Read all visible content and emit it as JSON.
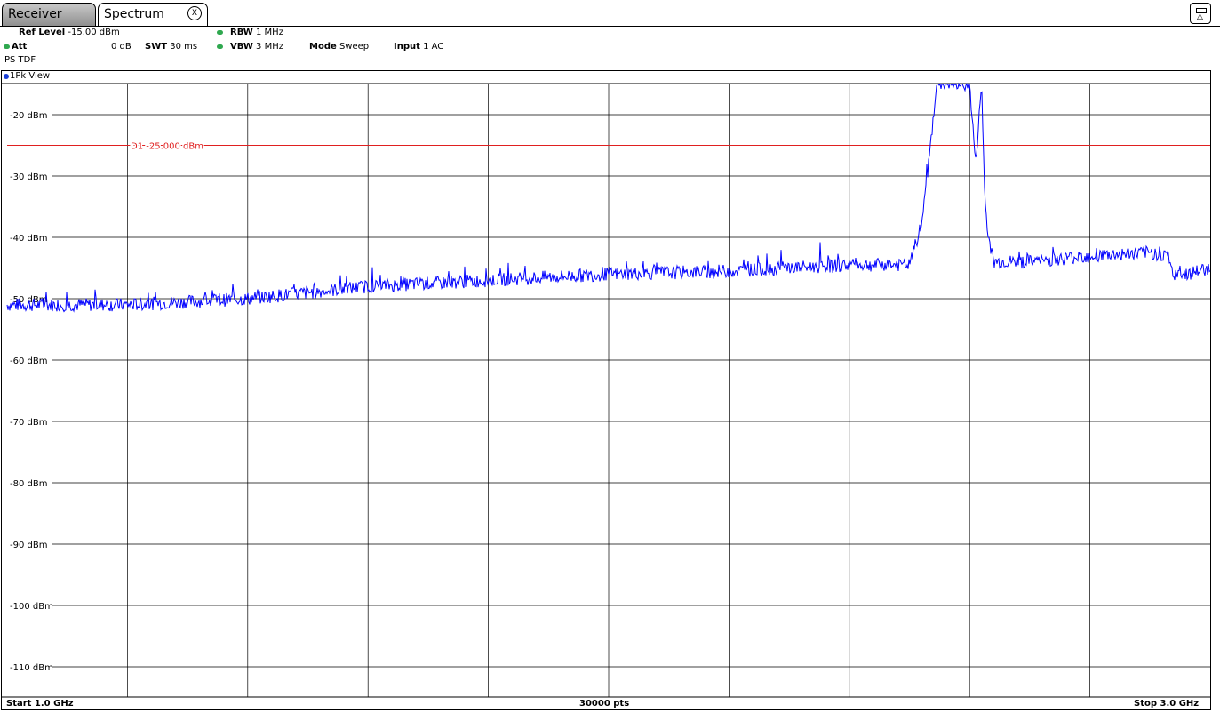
{
  "tabs": [
    {
      "label": "Receiver"
    },
    {
      "label": "Spectrum",
      "close_label": "X"
    }
  ],
  "header": {
    "ref_level": {
      "label": "Ref Level",
      "value": "-15.00 dBm"
    },
    "att": {
      "label": "Att",
      "value": "0 dB"
    },
    "swt": {
      "label": "SWT",
      "value": "30 ms"
    },
    "rbw": {
      "label": "RBW",
      "value": "1 MHz"
    },
    "vbw": {
      "label": "VBW",
      "value": "3 MHz"
    },
    "mode": {
      "label": "Mode",
      "value": "Sweep"
    },
    "input": {
      "label": "Input",
      "value": "1 AC"
    },
    "ps": "PS TDF"
  },
  "view_label": "1Pk View",
  "display_line": {
    "label": "D1",
    "value_text": "-25.000 dBm",
    "value": -25,
    "color": "#e02020"
  },
  "trace_color": "#0000ff",
  "footer": {
    "start": "Start 1.0 GHz",
    "points": "30000 pts",
    "stop": "Stop 3.0 GHz"
  },
  "chart_data": {
    "type": "line",
    "xlim": [
      1.0,
      3.0
    ],
    "ylim": [
      -115,
      -15
    ],
    "y_ticks": [
      -20,
      -30,
      -40,
      -50,
      -60,
      -70,
      -80,
      -90,
      -100,
      -110
    ],
    "y_tick_labels": [
      "-20 dBm",
      "-30 dBm",
      "-40 dBm",
      "-50 dBm",
      "-60 dBm",
      "-70 dBm",
      "-80 dBm",
      "-90 dBm",
      "-100 dBm",
      "-110 dBm"
    ],
    "x_divisions": 10,
    "series": [
      {
        "x": [
          1.0,
          1.2,
          1.4,
          1.6,
          1.8,
          2.0,
          2.2,
          2.4,
          2.5,
          2.52,
          2.53,
          2.545,
          2.55,
          2.58,
          2.6,
          2.61,
          2.62,
          2.625,
          2.63,
          2.64,
          2.66,
          2.7,
          2.8,
          2.9,
          2.93,
          2.94,
          3.0
        ],
        "y": [
          -51,
          -51,
          -50,
          -48,
          -47,
          -46,
          -45.5,
          -44.5,
          -44.5,
          -38,
          -30,
          -15,
          -15,
          -15,
          -15,
          -28,
          -15,
          -33,
          -40,
          -44,
          -44,
          -44,
          -43,
          -42.5,
          -43,
          -46.5,
          -45
        ]
      }
    ]
  }
}
